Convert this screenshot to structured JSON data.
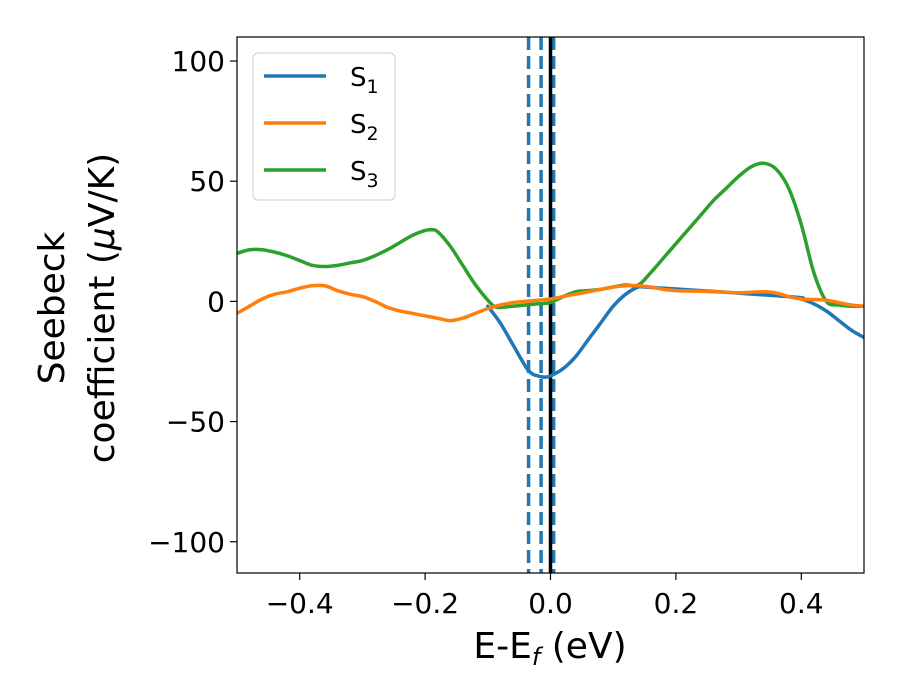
{
  "chart_data": {
    "type": "line",
    "xlabel": {
      "main": "E-E",
      "sub": "f",
      "unit": " (eV)"
    },
    "ylabel": {
      "line1": "Seebeck",
      "line2_prefix": "coefficient  (",
      "mu": "μ",
      "line2_suffix": "V/K)"
    },
    "xlim": [
      -0.5,
      0.5
    ],
    "ylim": [
      -113,
      110
    ],
    "xticks": [
      -0.4,
      -0.2,
      0.0,
      0.2,
      0.4
    ],
    "xtick_labels": [
      "−0.4",
      "−0.2",
      "0.0",
      "0.2",
      "0.4"
    ],
    "yticks": [
      -100,
      -50,
      0,
      50,
      100
    ],
    "ytick_labels": [
      "−100",
      "−50",
      "0",
      "50",
      "100"
    ],
    "legend_position": "top-left",
    "grid": false,
    "vlines": [
      {
        "x": -0.035,
        "style": "dashed",
        "color": "#1f77b4"
      },
      {
        "x": -0.015,
        "style": "dashed",
        "color": "#1f77b4"
      },
      {
        "x": 0.005,
        "style": "dashed",
        "color": "#1f77b4"
      },
      {
        "x": 0.0,
        "style": "solid",
        "color": "#000000"
      }
    ],
    "series": [
      {
        "name": "S",
        "name_sub": "1",
        "color": "#1f77b4",
        "x": [
          -0.1,
          -0.08,
          -0.06,
          -0.04,
          -0.03,
          -0.02,
          -0.01,
          0.0,
          0.02,
          0.04,
          0.06,
          0.08,
          0.1,
          0.12,
          0.14,
          0.15,
          0.38,
          0.4,
          0.42,
          0.44,
          0.46,
          0.48,
          0.5
        ],
        "y": [
          -2,
          -9,
          -18,
          -27,
          -30,
          -31,
          -31.5,
          -31,
          -28,
          -23,
          -16,
          -9,
          -2,
          3,
          6,
          6,
          2,
          1,
          -1,
          -4,
          -8,
          -12,
          -15
        ]
      },
      {
        "name": "S",
        "name_sub": "2",
        "color": "#ff7f0e",
        "x": [
          -0.5,
          -0.48,
          -0.46,
          -0.44,
          -0.42,
          -0.4,
          -0.38,
          -0.36,
          -0.34,
          -0.32,
          -0.3,
          -0.28,
          -0.26,
          -0.24,
          -0.22,
          -0.2,
          -0.18,
          -0.16,
          -0.14,
          -0.12,
          -0.1,
          -0.08,
          -0.06,
          -0.04,
          -0.02,
          0.0,
          0.02,
          0.04,
          0.06,
          0.08,
          0.1,
          0.12,
          0.14,
          0.16,
          0.18,
          0.2,
          0.22,
          0.24,
          0.26,
          0.28,
          0.3,
          0.32,
          0.34,
          0.36,
          0.38,
          0.4,
          0.42,
          0.44,
          0.46,
          0.48,
          0.5
        ],
        "y": [
          -5,
          -2,
          1,
          3,
          4,
          5.5,
          6.5,
          6.5,
          4.5,
          3,
          2,
          0,
          -2.5,
          -4,
          -5,
          -6,
          -7,
          -8,
          -7,
          -5,
          -3,
          -1.5,
          -0.5,
          0,
          0.5,
          1,
          2,
          3,
          4,
          5,
          6,
          6.5,
          6.5,
          6,
          5,
          4.5,
          4.3,
          4.2,
          4,
          3.8,
          3.6,
          3.8,
          4,
          3.5,
          2,
          1,
          0.8,
          0.5,
          -0.5,
          -1.5,
          -2
        ]
      },
      {
        "name": "S",
        "name_sub": "3",
        "color": "#2ca02c",
        "x": [
          -0.5,
          -0.48,
          -0.46,
          -0.44,
          -0.42,
          -0.4,
          -0.38,
          -0.36,
          -0.34,
          -0.32,
          -0.3,
          -0.28,
          -0.26,
          -0.24,
          -0.22,
          -0.2,
          -0.19,
          -0.18,
          -0.16,
          -0.14,
          -0.12,
          -0.1,
          -0.09,
          -0.08,
          -0.06,
          -0.04,
          -0.02,
          0.0,
          0.02,
          0.04,
          0.06,
          0.08,
          0.1,
          0.12,
          0.14,
          0.16,
          0.18,
          0.2,
          0.22,
          0.24,
          0.26,
          0.28,
          0.3,
          0.32,
          0.34,
          0.36,
          0.38,
          0.4,
          0.42,
          0.44,
          0.46,
          0.48,
          0.5
        ],
        "y": [
          20,
          21.5,
          21.5,
          20.5,
          19,
          17,
          15,
          14.5,
          15,
          16,
          17,
          19,
          21.5,
          24.5,
          27.5,
          29.5,
          29.8,
          29,
          23,
          15,
          7,
          0.5,
          -2,
          -2.5,
          -2,
          -1.5,
          -1,
          -0.5,
          2,
          4,
          4.5,
          5,
          6,
          6.8,
          6.8,
          12,
          18,
          24,
          30,
          36,
          42,
          47,
          52,
          56,
          57.5,
          55,
          47,
          32,
          12,
          0,
          -1.5,
          -2,
          -2
        ]
      }
    ]
  }
}
